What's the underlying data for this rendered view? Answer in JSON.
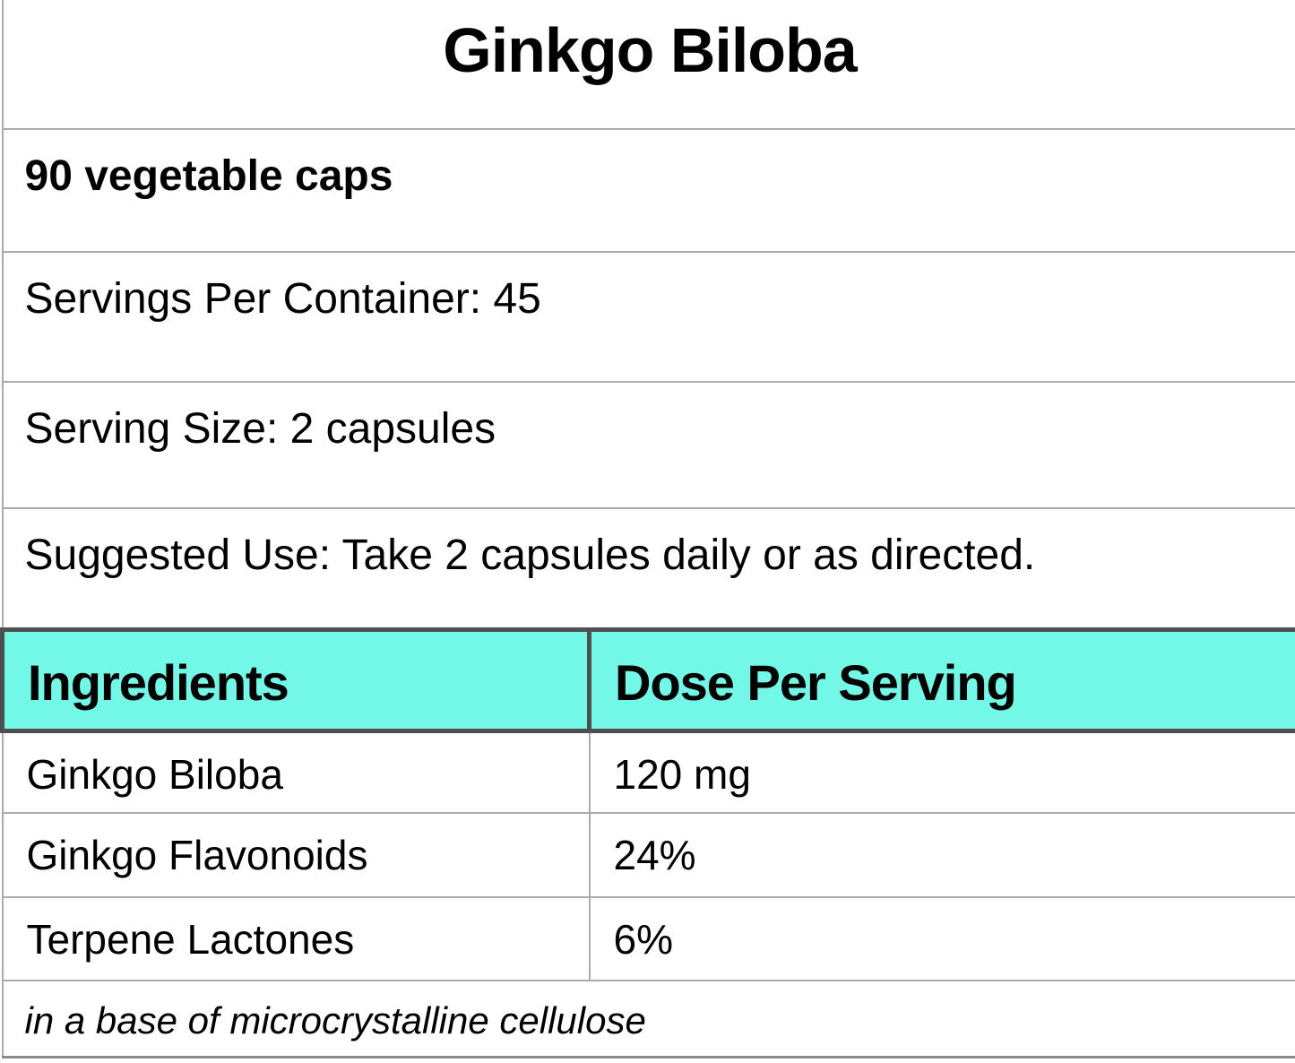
{
  "title": "Ginkgo Biloba",
  "info_rows": [
    {
      "text": "90 vegetable caps"
    },
    {
      "text": "Servings Per Container: 45"
    },
    {
      "text": "Serving Size: 2 capsules"
    },
    {
      "text": "Suggested Use: Take 2 capsules daily or as directed."
    }
  ],
  "table": {
    "headers": [
      "Ingredients",
      "Dose Per Serving"
    ],
    "rows": [
      {
        "ingredient": "Ginkgo Biloba",
        "dose": "120 mg"
      },
      {
        "ingredient": "Ginkgo Flavonoids",
        "dose": "24%"
      },
      {
        "ingredient": "Terpene Lactones",
        "dose": "6%"
      }
    ]
  },
  "footnote": "in a base of microcrystalline cellulose",
  "colors": {
    "header_bg": "#73f7e6",
    "border_light": "#ababab",
    "border_dark": "#4f4f4f",
    "border_bottom": "#8c8c8c",
    "text": "#000000"
  }
}
